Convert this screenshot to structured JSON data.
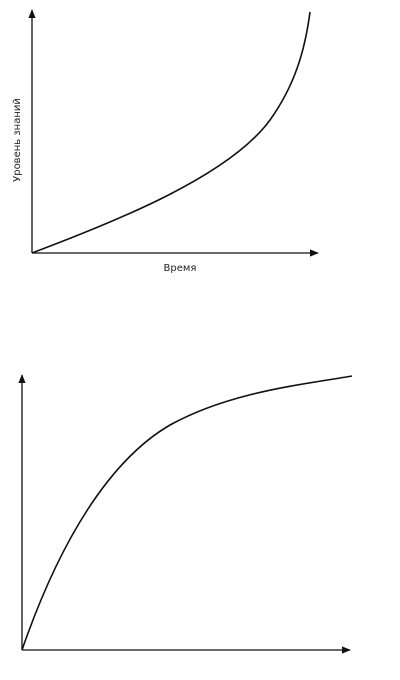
{
  "top_diagram": {
    "y_label": "Уровень знаний",
    "x_label": "Время"
  }
}
